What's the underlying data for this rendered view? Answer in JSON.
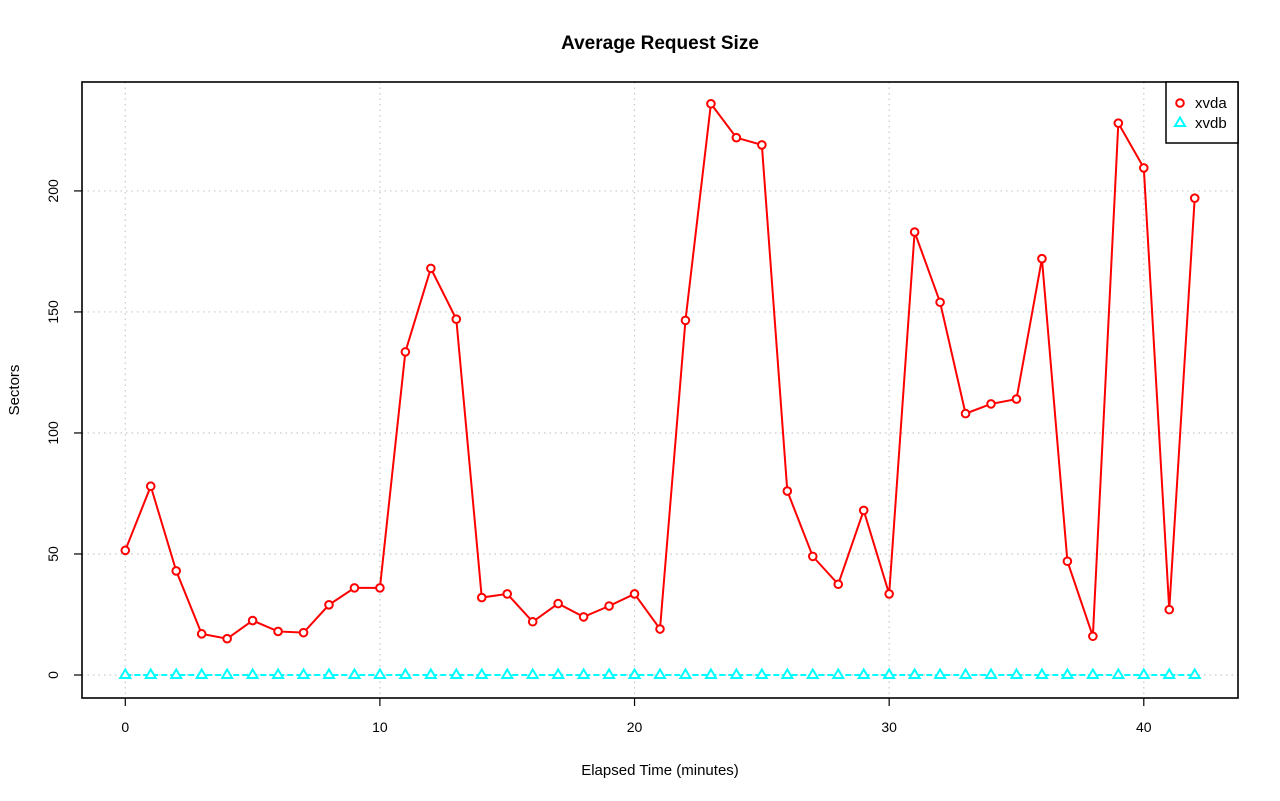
{
  "chart_data": {
    "type": "line",
    "title": "Average Request Size",
    "xlabel": "Elapsed Time (minutes)",
    "ylabel": "Sectors",
    "xlim": [
      -1.7,
      43.7
    ],
    "ylim": [
      -9.5,
      245
    ],
    "x_ticks": [
      0,
      10,
      20,
      30,
      40
    ],
    "y_ticks": [
      0,
      50,
      100,
      150,
      200
    ],
    "grid": true,
    "legend_position": "top-right",
    "x": [
      0,
      1,
      2,
      3,
      4,
      5,
      6,
      7,
      8,
      9,
      10,
      11,
      12,
      13,
      14,
      15,
      16,
      17,
      18,
      19,
      20,
      21,
      22,
      23,
      24,
      25,
      26,
      27,
      28,
      29,
      30,
      31,
      32,
      33,
      34,
      35,
      36,
      37,
      38,
      39,
      40,
      41,
      42
    ],
    "series": [
      {
        "name": "xvda",
        "color": "#ff0000",
        "marker": "circle",
        "line_style": "solid",
        "values": [
          51.5,
          78,
          43,
          17,
          15,
          22.5,
          18,
          17.5,
          29,
          36,
          36,
          133.5,
          168,
          147,
          32,
          33.5,
          22,
          29.5,
          24,
          28.5,
          33.5,
          19,
          146.5,
          236,
          222,
          219,
          76,
          49,
          37.5,
          68,
          33.5,
          183,
          154,
          108,
          112,
          114,
          172,
          47,
          16,
          228,
          209.5,
          27,
          197
        ]
      },
      {
        "name": "xvdb",
        "color": "#00ffff",
        "marker": "triangle",
        "line_style": "dashed",
        "values": [
          0,
          0,
          0,
          0,
          0,
          0,
          0,
          0,
          0,
          0,
          0,
          0,
          0,
          0,
          0,
          0,
          0,
          0,
          0,
          0,
          0,
          0,
          0,
          0,
          0,
          0,
          0,
          0,
          0,
          0,
          0,
          0,
          0,
          0,
          0,
          0,
          0,
          0,
          0,
          0,
          0,
          0,
          0
        ]
      }
    ]
  }
}
